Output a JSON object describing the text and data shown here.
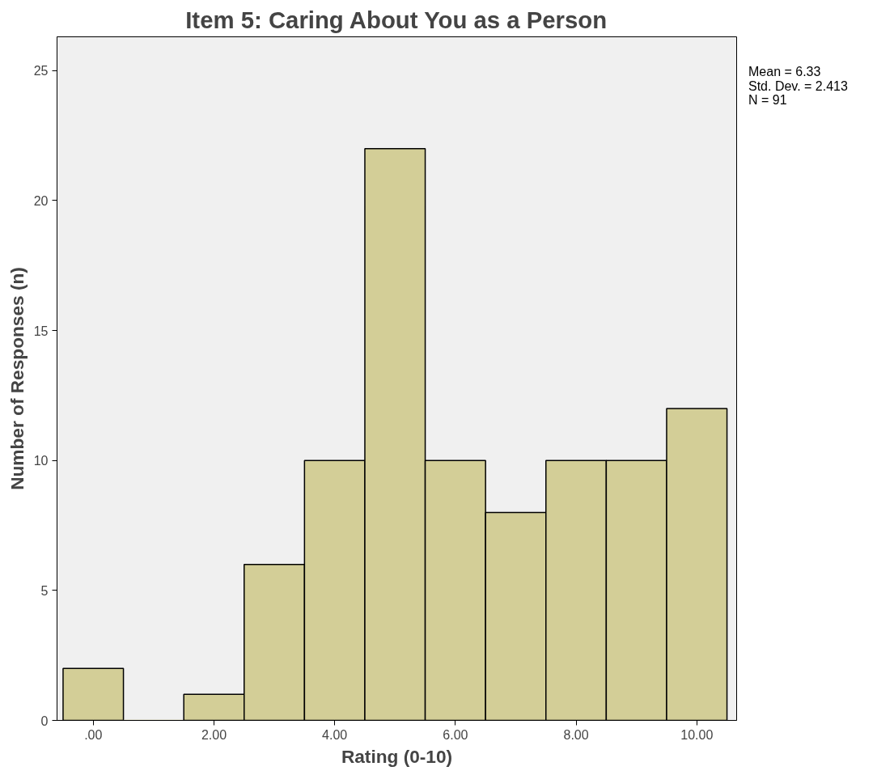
{
  "chart_data": {
    "type": "histogram",
    "title": "Item 5: Caring About You as a Person",
    "xlabel": "Rating (0-10)",
    "ylabel": "Number of Responses (n)",
    "bins": [
      -0.5,
      0.5,
      1.5,
      2.5,
      3.5,
      4.5,
      5.5,
      6.5,
      7.5,
      8.5,
      9.5,
      10.5
    ],
    "values": [
      2,
      0,
      1,
      6,
      10,
      22,
      10,
      8,
      10,
      10,
      12
    ],
    "color": "#d3ce97",
    "xlim": [
      -0.6,
      10.66
    ],
    "ylim": [
      0,
      26.3
    ],
    "xticks": [
      {
        "value": 0,
        "label": ".00"
      },
      {
        "value": 2,
        "label": "2.00"
      },
      {
        "value": 4,
        "label": "4.00"
      },
      {
        "value": 6,
        "label": "6.00"
      },
      {
        "value": 8,
        "label": "8.00"
      },
      {
        "value": 10,
        "label": "10.00"
      }
    ],
    "yticks": [
      0,
      5,
      10,
      15,
      20,
      25
    ],
    "grid": false,
    "annotations": [
      "Mean = 6.33",
      "Std. Dev. = 2.413",
      "N = 91"
    ]
  }
}
